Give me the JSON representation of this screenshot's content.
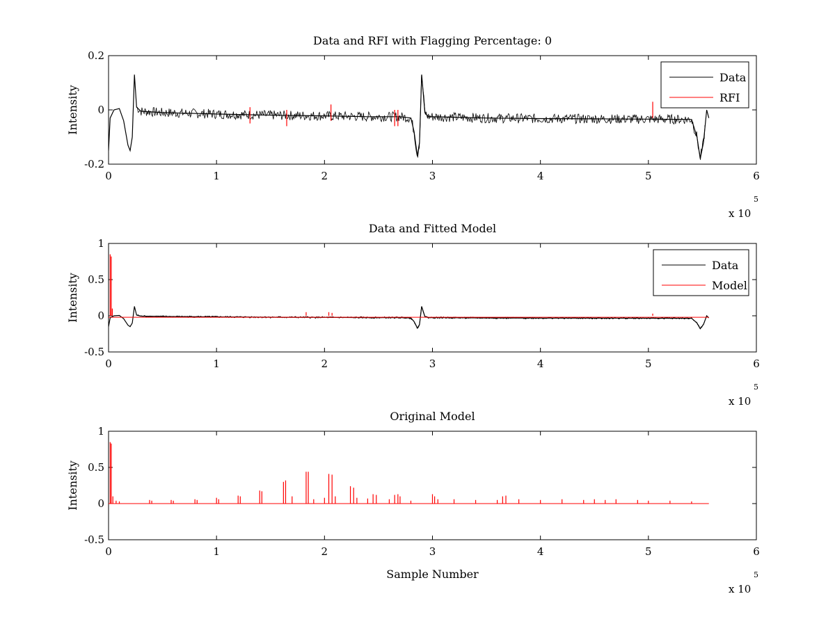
{
  "chart_data": [
    {
      "type": "line",
      "title": "Data and RFI with Flagging Percentage: 0",
      "xlabel": "",
      "ylabel": "Intensity",
      "xlim": [
        0,
        600000
      ],
      "ylim": [
        -0.2,
        0.2
      ],
      "x_ticks": [
        "0",
        "1",
        "2",
        "3",
        "4",
        "5",
        "6"
      ],
      "y_ticks": [
        "-0.2",
        "0",
        "0.2"
      ],
      "x_multiplier": {
        "base": "x 10",
        "exponent": "5"
      },
      "legend": {
        "position": "top-right",
        "entries": [
          "Data",
          "RFI"
        ]
      },
      "series": [
        {
          "name": "Data",
          "color": "#000000",
          "x": [
            0,
            1500,
            5000,
            10000,
            14000,
            18000,
            20000,
            22000,
            24000,
            26000,
            30000,
            50000,
            100000,
            130000,
            160000,
            200000,
            240000,
            270000,
            280000,
            283000,
            286000,
            288000,
            290000,
            293000,
            296000,
            300000,
            350000,
            400000,
            450000,
            500000,
            540000,
            545000,
            548000,
            551000,
            554000,
            556000
          ],
          "values": [
            -0.15,
            -0.03,
            0.0,
            0.005,
            -0.04,
            -0.13,
            -0.15,
            -0.1,
            0.13,
            0.01,
            -0.005,
            -0.01,
            -0.015,
            -0.018,
            -0.02,
            -0.022,
            -0.025,
            -0.025,
            -0.03,
            -0.08,
            -0.17,
            -0.12,
            0.13,
            -0.01,
            -0.025,
            -0.025,
            -0.03,
            -0.032,
            -0.033,
            -0.034,
            -0.035,
            -0.1,
            -0.18,
            -0.12,
            0.0,
            -0.03
          ]
        },
        {
          "name": "RFI",
          "color": "#ff0000",
          "x": [
            131000,
            165000,
            206000,
            265000,
            268000,
            504000
          ],
          "values": [
            0.01,
            0.0,
            0.02,
            0.0,
            0.0,
            0.03
          ]
        }
      ]
    },
    {
      "type": "line",
      "title": "Data and Fitted Model",
      "xlabel": "",
      "ylabel": "Intensity",
      "xlim": [
        0,
        600000
      ],
      "ylim": [
        -0.5,
        1
      ],
      "x_ticks": [
        "0",
        "1",
        "2",
        "3",
        "4",
        "5",
        "6"
      ],
      "y_ticks": [
        "-0.5",
        "0",
        "0.5",
        "1"
      ],
      "x_multiplier": {
        "base": "x 10",
        "exponent": "5"
      },
      "legend": {
        "position": "top-right",
        "entries": [
          "Data",
          "Model"
        ]
      },
      "series": [
        {
          "name": "Data",
          "color": "#000000",
          "x": [
            0,
            1500,
            5000,
            10000,
            14000,
            18000,
            20000,
            22000,
            24000,
            26000,
            30000,
            50000,
            100000,
            130000,
            160000,
            200000,
            240000,
            270000,
            280000,
            283000,
            286000,
            288000,
            290000,
            293000,
            296000,
            300000,
            350000,
            400000,
            450000,
            500000,
            540000,
            545000,
            548000,
            551000,
            554000,
            556000
          ],
          "values": [
            -0.15,
            -0.03,
            0.0,
            0.005,
            -0.04,
            -0.13,
            -0.15,
            -0.1,
            0.13,
            0.01,
            -0.005,
            -0.01,
            -0.015,
            -0.018,
            -0.02,
            -0.022,
            -0.025,
            -0.025,
            -0.03,
            -0.08,
            -0.17,
            -0.12,
            0.13,
            -0.01,
            -0.025,
            -0.025,
            -0.03,
            -0.032,
            -0.033,
            -0.034,
            -0.035,
            -0.1,
            -0.18,
            -0.12,
            0.0,
            -0.03
          ]
        },
        {
          "name": "Model",
          "color": "#ff0000",
          "x": [
            1500,
            2500,
            3500,
            183000,
            204000,
            207000,
            504000
          ],
          "values": [
            0.85,
            0.82,
            0.1,
            0.05,
            0.05,
            0.04,
            0.03
          ]
        }
      ]
    },
    {
      "type": "line",
      "title": "Original Model",
      "xlabel": "Sample Number",
      "ylabel": "Intensity",
      "xlim": [
        0,
        600000
      ],
      "ylim": [
        -0.5,
        1
      ],
      "x_ticks": [
        "0",
        "1",
        "2",
        "3",
        "4",
        "5",
        "6"
      ],
      "y_ticks": [
        "-0.5",
        "0",
        "0.5",
        "1"
      ],
      "x_multiplier": {
        "base": "x 10",
        "exponent": "5"
      },
      "series": [
        {
          "name": "Model",
          "color": "#ff0000",
          "x": [
            1500,
            2500,
            4000,
            7000,
            10000,
            38000,
            40000,
            58000,
            60000,
            80000,
            82000,
            100000,
            102000,
            120000,
            122000,
            140000,
            142000,
            162000,
            164000,
            170000,
            183000,
            185000,
            190000,
            200000,
            204000,
            207000,
            210000,
            224000,
            227000,
            230000,
            240000,
            245000,
            248000,
            260000,
            265000,
            268000,
            270000,
            280000,
            300000,
            302000,
            305000,
            320000,
            340000,
            360000,
            365000,
            368000,
            380000,
            400000,
            420000,
            440000,
            450000,
            460000,
            470000,
            490000,
            500000,
            520000,
            540000
          ],
          "values": [
            0.85,
            0.83,
            0.1,
            0.04,
            0.03,
            0.05,
            0.04,
            0.05,
            0.04,
            0.06,
            0.05,
            0.08,
            0.06,
            0.11,
            0.1,
            0.18,
            0.17,
            0.3,
            0.32,
            0.1,
            0.44,
            0.44,
            0.06,
            0.08,
            0.41,
            0.4,
            0.1,
            0.24,
            0.22,
            0.08,
            0.07,
            0.13,
            0.12,
            0.06,
            0.12,
            0.13,
            0.1,
            0.04,
            0.13,
            0.1,
            0.06,
            0.06,
            0.05,
            0.05,
            0.1,
            0.11,
            0.06,
            0.05,
            0.06,
            0.05,
            0.06,
            0.05,
            0.06,
            0.05,
            0.04,
            0.04,
            0.03
          ]
        }
      ]
    }
  ]
}
